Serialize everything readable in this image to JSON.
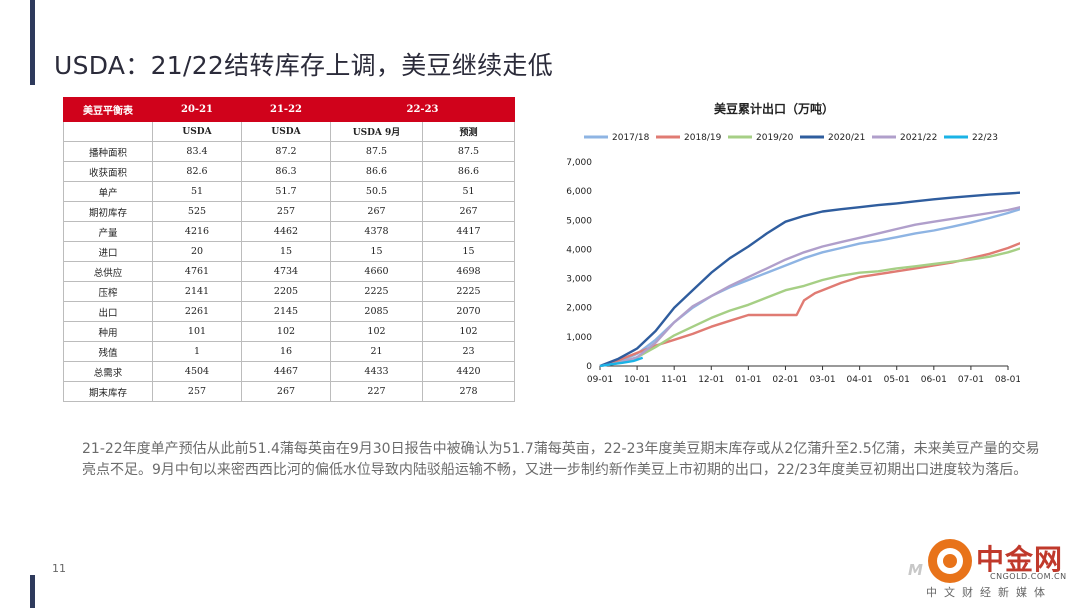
{
  "slide": {
    "title": "USDA：21/22结转库存上调，美豆继续走低",
    "page_number": "11",
    "note": "21-22年度单产预估从此前51.4蒲每英亩在9月30日报告中被确认为51.7蒲每英亩，22-23年度美豆期末库存或从2亿蒲升至2.5亿蒲，未来美豆产量的交易亮点不足。9月中旬以来密西西比河的偏低水位导致内陆驳船运输不畅，又进一步制约新作美豆上市初期的出口，22/23年度美豆初期出口进度较为落后。"
  },
  "table": {
    "header": [
      "美豆平衡表",
      "20-21",
      "21-22",
      "22-23"
    ],
    "subheader": [
      "",
      "USDA",
      "USDA",
      "USDA 9月",
      "预测"
    ],
    "rows": [
      {
        "label": "播种面积",
        "v": [
          "83.4",
          "87.2",
          "87.5",
          "87.5"
        ]
      },
      {
        "label": "收获面积",
        "v": [
          "82.6",
          "86.3",
          "86.6",
          "86.6"
        ]
      },
      {
        "label": "单产",
        "v": [
          "51",
          "51.7",
          "50.5",
          "51"
        ]
      },
      {
        "label": "期初库存",
        "v": [
          "525",
          "257",
          "267",
          "267"
        ]
      },
      {
        "label": "产量",
        "v": [
          "4216",
          "4462",
          "4378",
          "4417"
        ]
      },
      {
        "label": "进口",
        "v": [
          "20",
          "15",
          "15",
          "15"
        ]
      },
      {
        "label": "总供应",
        "v": [
          "4761",
          "4734",
          "4660",
          "4698"
        ]
      },
      {
        "label": "压榨",
        "v": [
          "2141",
          "2205",
          "2225",
          "2225"
        ]
      },
      {
        "label": "出口",
        "v": [
          "2261",
          "2145",
          "2085",
          "2070"
        ]
      },
      {
        "label": "种用",
        "v": [
          "101",
          "102",
          "102",
          "102"
        ]
      },
      {
        "label": "残值",
        "v": [
          "1",
          "16",
          "21",
          "23"
        ]
      },
      {
        "label": "总需求",
        "v": [
          "4504",
          "4467",
          "4433",
          "4420"
        ]
      },
      {
        "label": "期末库存",
        "v": [
          "257",
          "267",
          "227",
          "278"
        ]
      }
    ]
  },
  "chart_data": {
    "type": "line",
    "title": "美豆累计出口（万吨）",
    "x": [
      "09-01",
      "10-01",
      "11-01",
      "12-01",
      "01-01",
      "02-01",
      "03-01",
      "04-01",
      "05-01",
      "06-01",
      "07-01",
      "08-01"
    ],
    "ylim": [
      0,
      7000
    ],
    "yticks": [
      "0",
      "1,000",
      "2,000",
      "3,000",
      "4,000",
      "5,000",
      "6,000",
      "7,000"
    ],
    "ytick_values": [
      0,
      1000,
      2000,
      3000,
      4000,
      5000,
      6000,
      7000
    ],
    "series": [
      {
        "name": "2017/18",
        "color": "#8eb4e3",
        "x": [
          0,
          0.5,
          1,
          1.5,
          2,
          2.5,
          3,
          3.5,
          4,
          4.5,
          5,
          5.5,
          6,
          6.5,
          7,
          7.5,
          8,
          8.5,
          9,
          9.5,
          10,
          10.5,
          11,
          11.5,
          12
        ],
        "values": [
          0,
          150,
          420,
          900,
          1500,
          2000,
          2400,
          2700,
          2950,
          3200,
          3450,
          3700,
          3900,
          4050,
          4200,
          4300,
          4420,
          4550,
          4650,
          4780,
          4920,
          5080,
          5250,
          5450,
          5650
        ]
      },
      {
        "name": "2018/19",
        "color": "#e07b73",
        "x": [
          0,
          0.5,
          1,
          1.5,
          2,
          2.5,
          3,
          3.5,
          4,
          4.5,
          5,
          5.3,
          5.5,
          5.8,
          6,
          6.5,
          7,
          7.5,
          8,
          8.5,
          9,
          9.5,
          10,
          10.5,
          11,
          11.5,
          12
        ],
        "values": [
          0,
          200,
          450,
          700,
          900,
          1100,
          1350,
          1550,
          1750,
          1750,
          1750,
          1750,
          2250,
          2500,
          2600,
          2850,
          3050,
          3150,
          3250,
          3350,
          3450,
          3550,
          3700,
          3850,
          4050,
          4300,
          4650
        ]
      },
      {
        "name": "2019/20",
        "color": "#a6cf85",
        "x": [
          0,
          0.5,
          1,
          1.5,
          2,
          2.5,
          3,
          3.5,
          4,
          4.5,
          5,
          5.5,
          6,
          6.5,
          7,
          7.5,
          8,
          8.5,
          9,
          9.5,
          10,
          10.5,
          11,
          11.5,
          12
        ],
        "values": [
          0,
          100,
          300,
          650,
          1050,
          1350,
          1650,
          1900,
          2100,
          2350,
          2600,
          2750,
          2950,
          3100,
          3200,
          3250,
          3350,
          3420,
          3500,
          3580,
          3650,
          3750,
          3900,
          4100,
          4450
        ]
      },
      {
        "name": "2020/21",
        "color": "#2f5d9e",
        "x": [
          0,
          0.5,
          1,
          1.5,
          2,
          2.5,
          3,
          3.5,
          4,
          4.5,
          5,
          5.5,
          6,
          6.5,
          7,
          7.5,
          8,
          8.5,
          9,
          9.5,
          10,
          10.5,
          11,
          11.5,
          12
        ],
        "values": [
          0,
          250,
          600,
          1200,
          2000,
          2600,
          3200,
          3700,
          4100,
          4550,
          4950,
          5150,
          5300,
          5380,
          5450,
          5520,
          5580,
          5650,
          5720,
          5780,
          5830,
          5880,
          5920,
          5960,
          6050
        ]
      },
      {
        "name": "2021/22",
        "color": "#b09fcb",
        "x": [
          0,
          0.5,
          1,
          1.5,
          2,
          2.5,
          3,
          3.5,
          4,
          4.5,
          5,
          5.5,
          6,
          6.5,
          7,
          7.5,
          8,
          8.5,
          9,
          9.5,
          10,
          10.5,
          11,
          11.5,
          12
        ],
        "values": [
          0,
          100,
          300,
          800,
          1500,
          2050,
          2400,
          2750,
          3050,
          3350,
          3650,
          3900,
          4100,
          4250,
          4400,
          4550,
          4700,
          4850,
          4950,
          5050,
          5150,
          5250,
          5350,
          5500,
          5700
        ]
      },
      {
        "name": "22/23",
        "color": "#1ab3e6",
        "x": [
          0,
          0.3,
          0.6,
          0.9,
          1.15
        ],
        "values": [
          0,
          60,
          110,
          170,
          280
        ]
      }
    ]
  }
}
